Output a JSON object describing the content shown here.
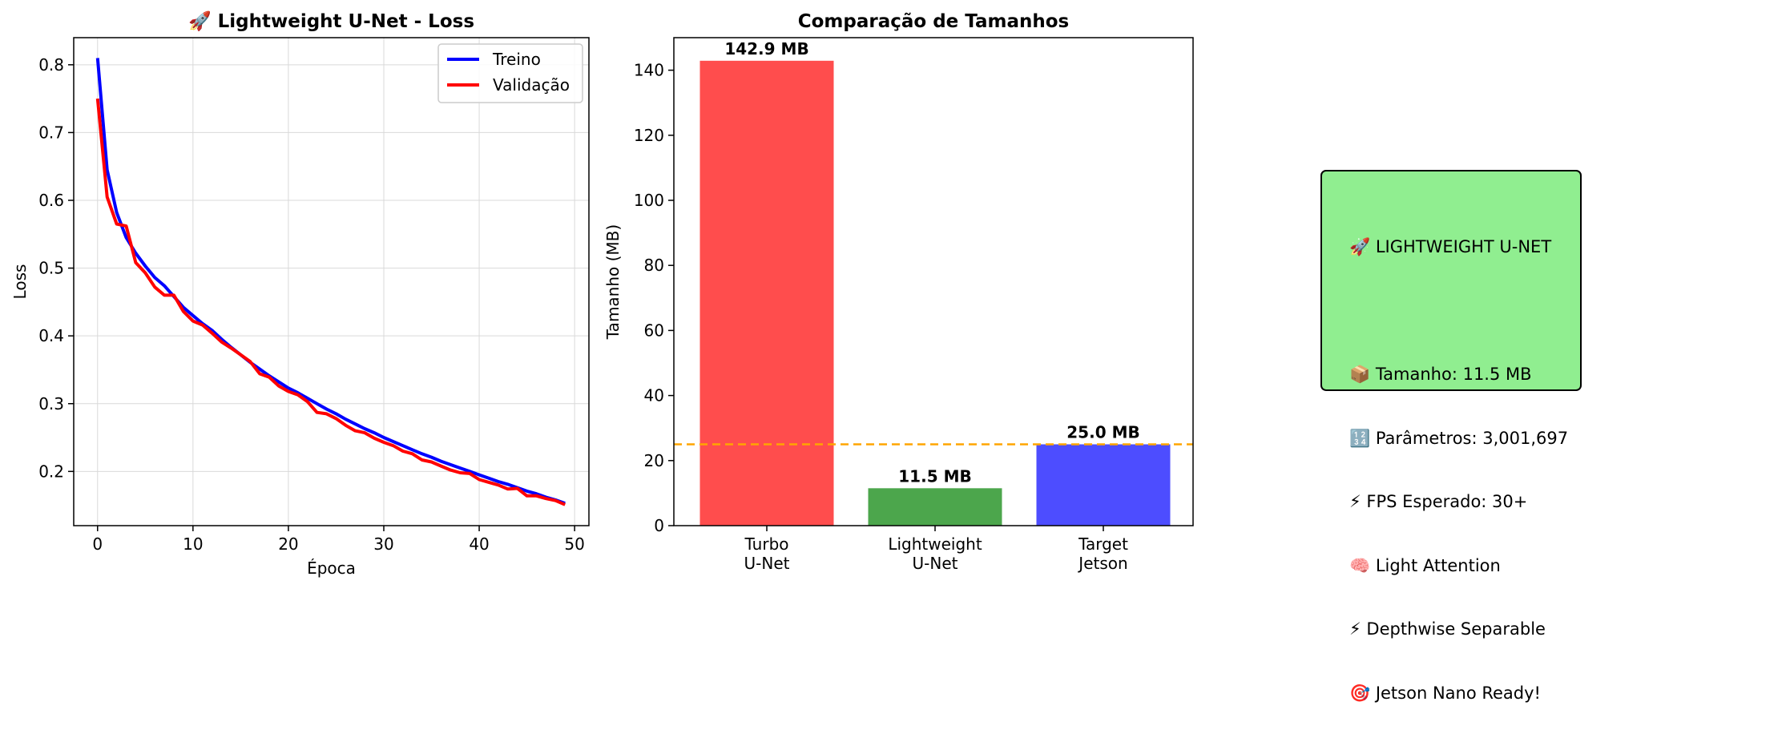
{
  "chart_data": [
    {
      "type": "line",
      "title": "🚀 Lightweight U-Net - Loss",
      "xlabel": "Época",
      "ylabel": "Loss",
      "xlim": [
        -2.5,
        51.5
      ],
      "ylim": [
        0.12,
        0.84
      ],
      "xticks": [
        0,
        10,
        20,
        30,
        40,
        50
      ],
      "yticks": [
        0.2,
        0.3,
        0.4,
        0.5,
        0.6,
        0.7,
        0.8
      ],
      "grid": true,
      "legend_position": "top-right",
      "x": [
        0,
        1,
        2,
        3,
        4,
        5,
        6,
        7,
        8,
        9,
        10,
        11,
        12,
        13,
        14,
        15,
        16,
        17,
        18,
        19,
        20,
        21,
        22,
        23,
        24,
        25,
        26,
        27,
        28,
        29,
        30,
        31,
        32,
        33,
        34,
        35,
        36,
        37,
        38,
        39,
        40,
        41,
        42,
        43,
        44,
        45,
        46,
        47,
        48,
        49
      ],
      "series": [
        {
          "name": "Treino",
          "color": "#0000ff",
          "values": [
            0.81,
            0.645,
            0.582,
            0.545,
            0.522,
            0.503,
            0.486,
            0.474,
            0.458,
            0.442,
            0.43,
            0.418,
            0.408,
            0.395,
            0.383,
            0.372,
            0.361,
            0.351,
            0.341,
            0.332,
            0.323,
            0.316,
            0.308,
            0.3,
            0.292,
            0.285,
            0.277,
            0.27,
            0.263,
            0.257,
            0.25,
            0.244,
            0.238,
            0.232,
            0.226,
            0.221,
            0.215,
            0.21,
            0.205,
            0.2,
            0.195,
            0.19,
            0.185,
            0.181,
            0.176,
            0.171,
            0.167,
            0.162,
            0.158,
            0.153
          ]
        },
        {
          "name": "Validação",
          "color": "#ff0000",
          "values": [
            0.75,
            0.605,
            0.565,
            0.562,
            0.508,
            0.493,
            0.472,
            0.46,
            0.46,
            0.436,
            0.422,
            0.416,
            0.404,
            0.391,
            0.382,
            0.372,
            0.362,
            0.344,
            0.339,
            0.326,
            0.318,
            0.313,
            0.303,
            0.287,
            0.285,
            0.278,
            0.268,
            0.26,
            0.257,
            0.249,
            0.243,
            0.238,
            0.23,
            0.226,
            0.217,
            0.214,
            0.208,
            0.202,
            0.198,
            0.197,
            0.188,
            0.184,
            0.18,
            0.174,
            0.175,
            0.164,
            0.164,
            0.16,
            0.157,
            0.151
          ]
        }
      ]
    },
    {
      "type": "bar",
      "title": "Comparação de Tamanhos",
      "xlabel": "",
      "ylabel": "Tamanho (MB)",
      "ylim": [
        0,
        150
      ],
      "yticks": [
        0,
        20,
        40,
        60,
        80,
        100,
        120,
        140
      ],
      "categories": [
        "Turbo\nU-Net",
        "Lightweight\nU-Net",
        "Target\nJetson"
      ],
      "values": [
        142.9,
        11.5,
        25.0
      ],
      "value_labels": [
        "142.9 MB",
        "11.5 MB",
        "25.0 MB"
      ],
      "colors": [
        "#ff4d4d",
        "#4ca64c",
        "#4d4dff"
      ],
      "reference_line": {
        "value": 25.0,
        "color": "#ffa500",
        "style": "dashed"
      }
    }
  ],
  "info_box": {
    "background": "#90ee90",
    "lines": [
      "🚀 LIGHTWEIGHT U-NET",
      "",
      "📦 Tamanho: 11.5 MB",
      "🔢 Parâmetros: 3,001,697",
      "⚡ FPS Esperado: 30+",
      "🧠 Light Attention",
      "⚡ Depthwise Separable",
      "🎯 Jetson Nano Ready!"
    ]
  }
}
